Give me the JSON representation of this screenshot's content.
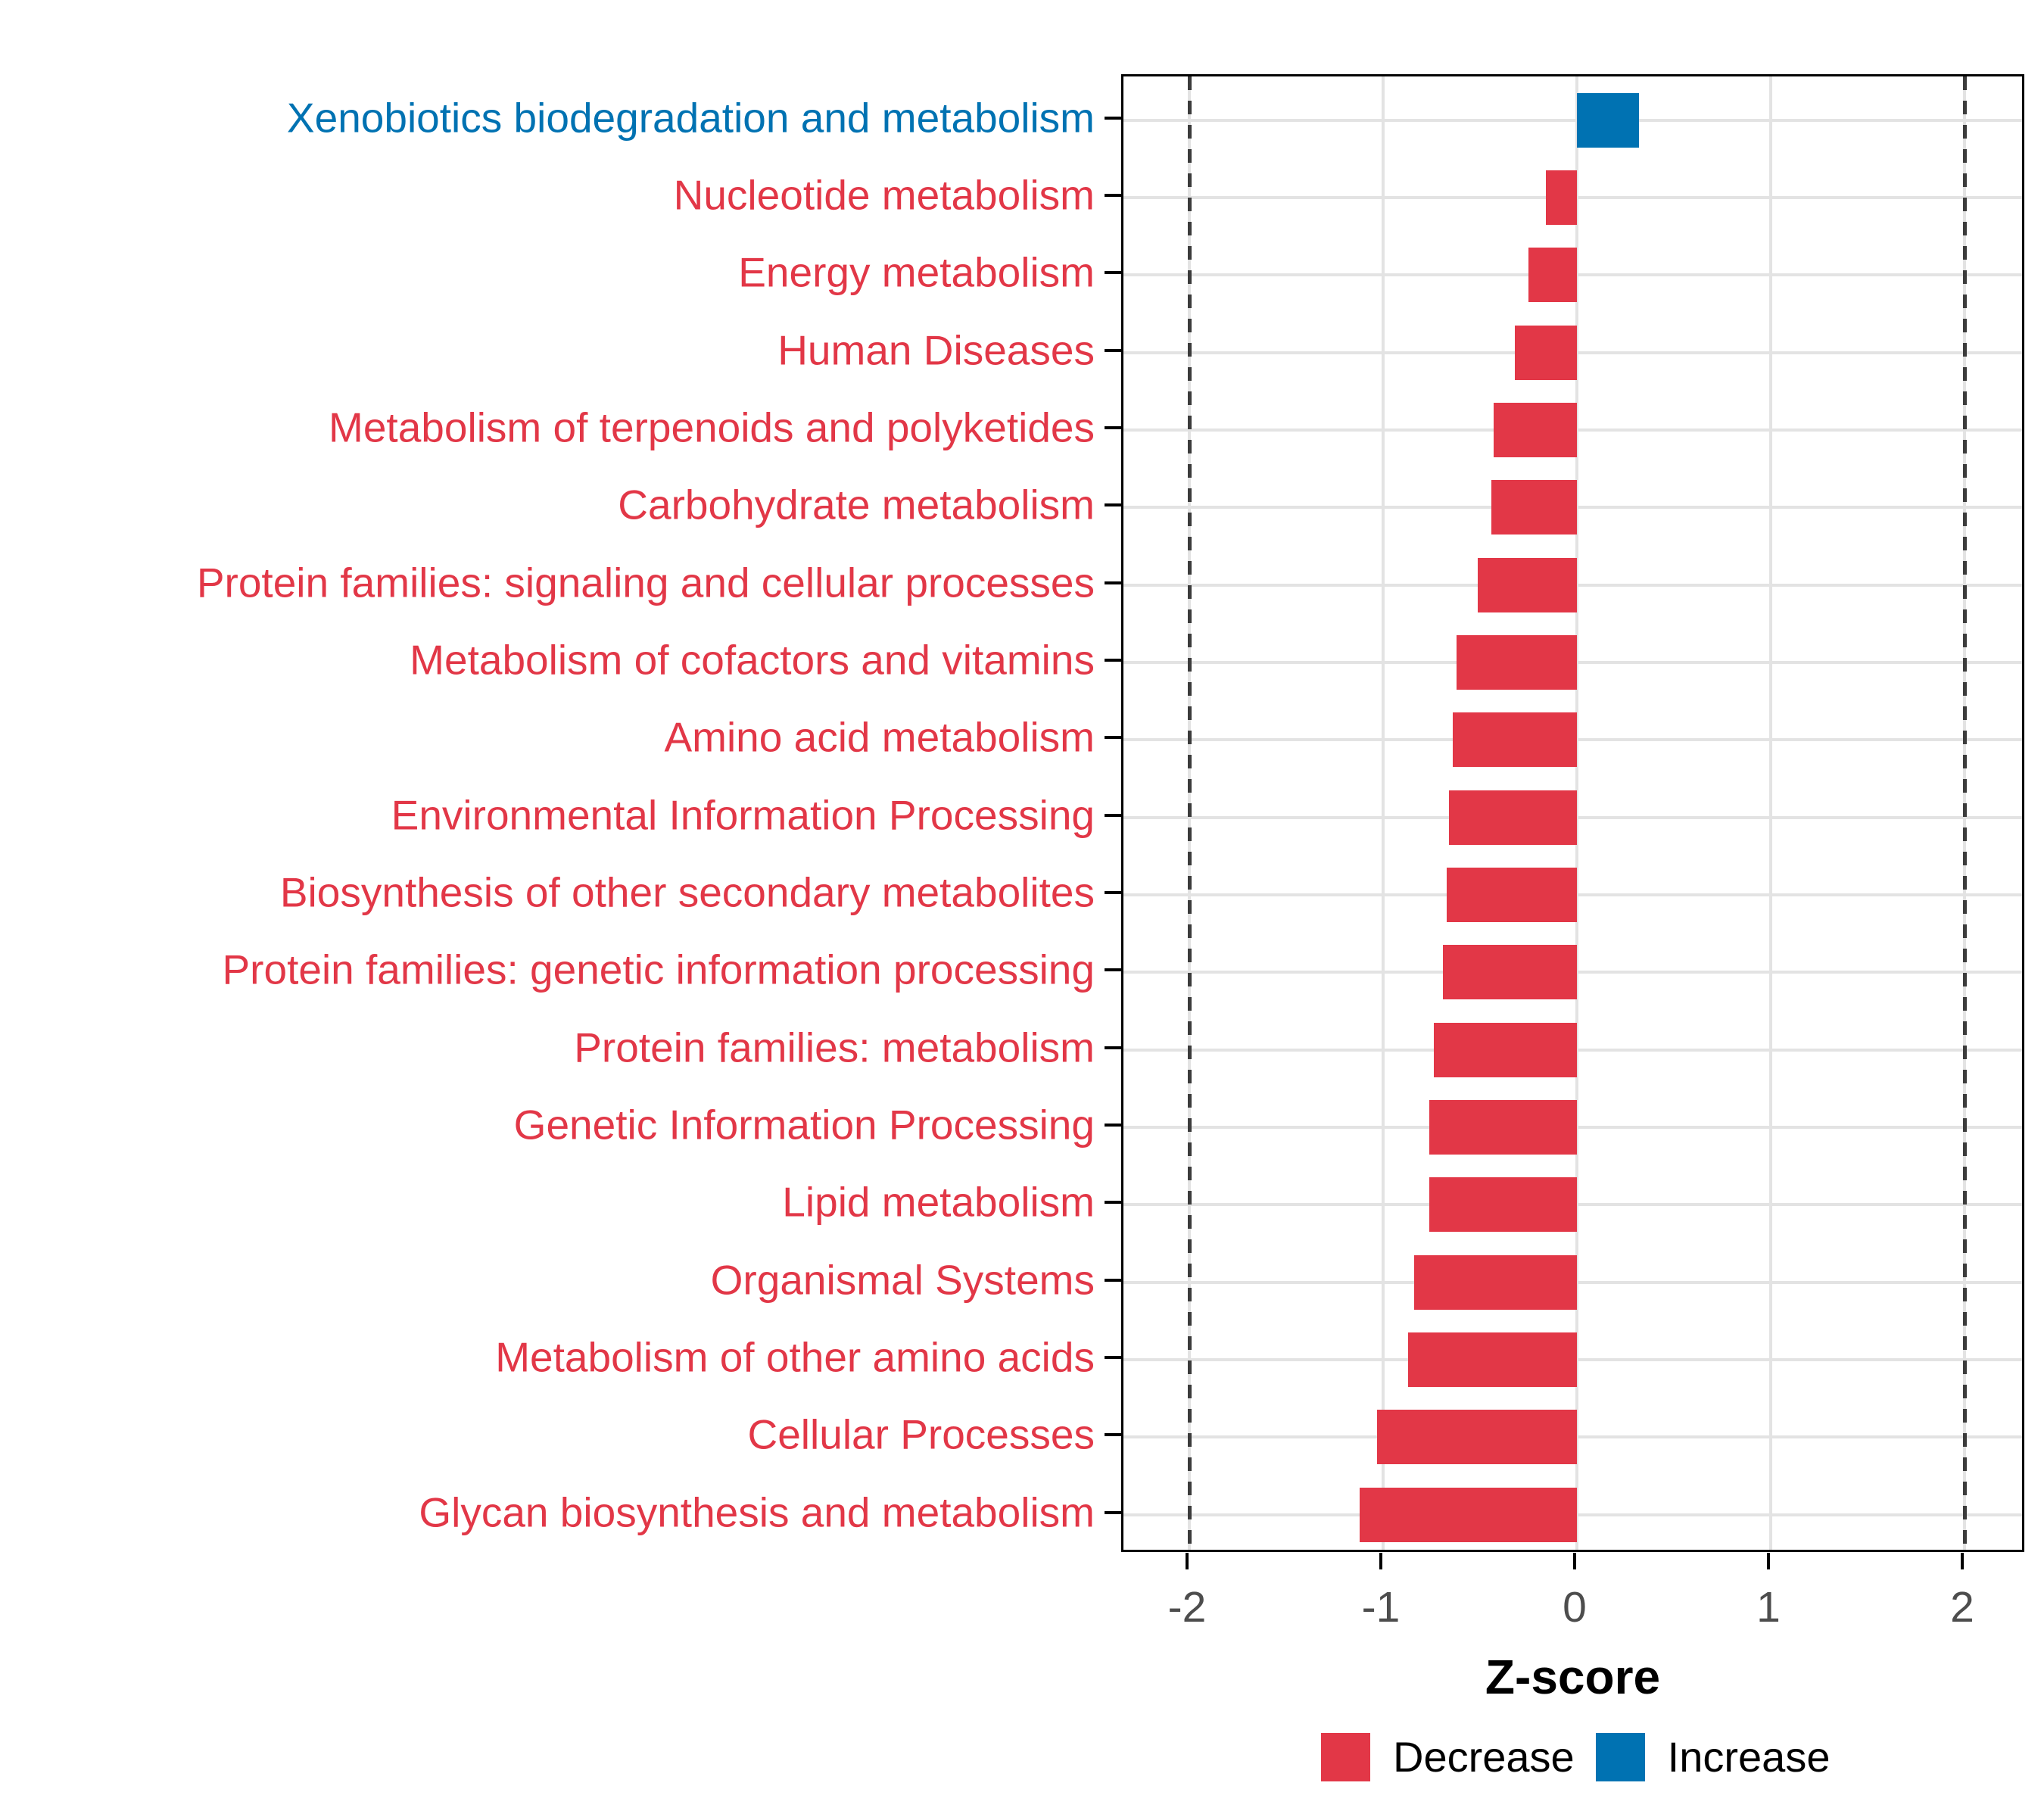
{
  "chart_data": {
    "type": "bar",
    "orientation": "horizontal",
    "title": "",
    "xlabel": "Z-score",
    "x_ticks": [
      "-2",
      "-1",
      "0",
      "1",
      "2"
    ],
    "x_tick_values": [
      -2,
      -1,
      0,
      1,
      2
    ],
    "xlim": [
      -2.34,
      2.32
    ],
    "grid": "major-only",
    "reference_dashed_lines_x": [
      -2,
      2
    ],
    "categories": [
      "Xenobiotics biodegradation and metabolism",
      "Nucleotide metabolism",
      "Energy metabolism",
      "Human Diseases",
      "Metabolism of terpenoids and polyketides",
      "Carbohydrate metabolism",
      "Protein families: signaling and cellular processes",
      "Metabolism of cofactors and vitamins",
      "Amino acid metabolism",
      "Environmental Information Processing",
      "Biosynthesis of other secondary metabolites",
      "Protein families: genetic information processing",
      "Protein families: metabolism",
      "Genetic Information Processing",
      "Lipid metabolism",
      "Organismal Systems",
      "Metabolism of other amino acids",
      "Cellular Processes",
      "Glycan biosynthesis and metabolism"
    ],
    "values": [
      0.32,
      -0.16,
      -0.25,
      -0.32,
      -0.43,
      -0.44,
      -0.51,
      -0.62,
      -0.64,
      -0.66,
      -0.67,
      -0.69,
      -0.74,
      -0.76,
      -0.76,
      -0.84,
      -0.87,
      -1.03,
      -1.12
    ],
    "groups": [
      "Increase",
      "Decrease",
      "Decrease",
      "Decrease",
      "Decrease",
      "Decrease",
      "Decrease",
      "Decrease",
      "Decrease",
      "Decrease",
      "Decrease",
      "Decrease",
      "Decrease",
      "Decrease",
      "Decrease",
      "Decrease",
      "Decrease",
      "Decrease",
      "Decrease"
    ]
  },
  "legend": {
    "position": "bottom",
    "items": [
      {
        "label": "Decrease",
        "group": "Decrease"
      },
      {
        "label": "Increase",
        "group": "Increase"
      }
    ]
  },
  "colors": {
    "decrease": "#E23747",
    "increase": "#0072B2",
    "grid": "#E3E3E3",
    "dashed_line": "#3C3C3C",
    "x_tick_label": "#4D4D4D",
    "panel_border": "#000000",
    "background": "#FFFFFF"
  }
}
